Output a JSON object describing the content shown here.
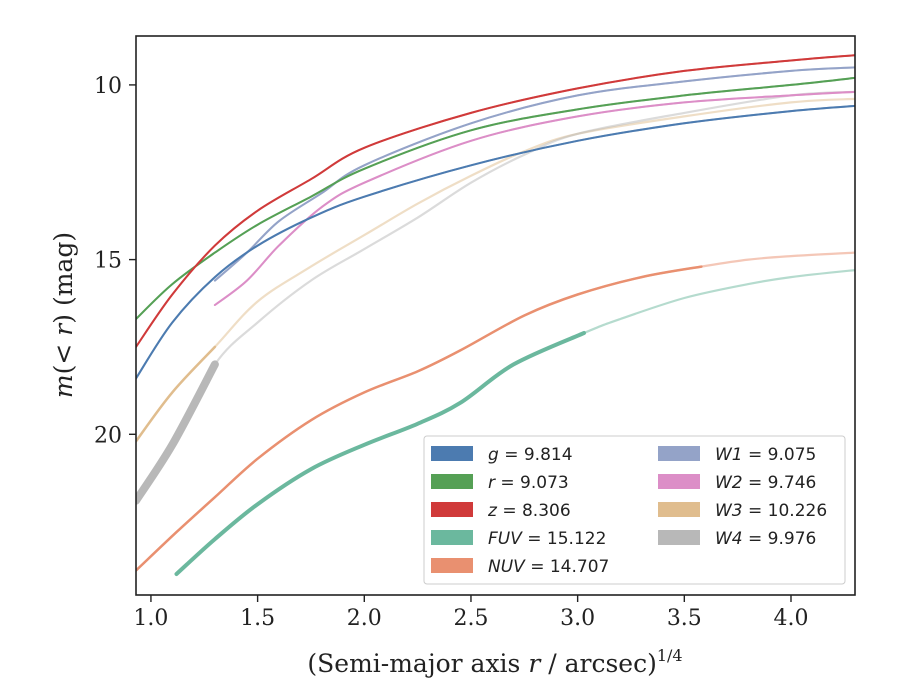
{
  "chart_data": {
    "type": "line",
    "xlabel": "(Semi-major axis r / arcsec)^1/4",
    "xlabel_parts": {
      "main": "(Semi-major axis ",
      "var": "r",
      "rest": " / arcsec)",
      "sup": "1/4"
    },
    "ylabel": "m(< r) (mag)",
    "ylabel_parts": {
      "var": "m",
      "open": "(",
      "lt": "< ",
      "r": "r",
      "close": ") (mag)"
    },
    "xlim": [
      0.93,
      4.3
    ],
    "ylim": [
      24.6,
      8.6
    ],
    "y_inverted": true,
    "xticks": [
      "1.0",
      "1.5",
      "2.0",
      "2.5",
      "3.0",
      "3.5",
      "4.0"
    ],
    "xtick_values": [
      1.0,
      1.5,
      2.0,
      2.5,
      3.0,
      3.5,
      4.0
    ],
    "yticks": [
      "10",
      "15",
      "20"
    ],
    "ytick_values": [
      10,
      15,
      20
    ],
    "legend_location": "lower right",
    "series": [
      {
        "name": "g = 9.814",
        "label_var": "g",
        "label_value": "9.814",
        "color": "#4c7bb0",
        "x": [
          0.93,
          1.1,
          1.3,
          1.5,
          1.75,
          2.0,
          2.5,
          3.0,
          3.5,
          4.0,
          4.3
        ],
        "y": [
          18.4,
          16.8,
          15.5,
          14.6,
          13.8,
          13.2,
          12.3,
          11.6,
          11.1,
          10.75,
          10.6
        ],
        "fade_after": 4.3,
        "width": 2
      },
      {
        "name": "r = 9.073",
        "label_var": "r",
        "label_value": "9.073",
        "color": "#55a055",
        "x": [
          0.93,
          1.1,
          1.3,
          1.5,
          1.75,
          2.0,
          2.5,
          3.0,
          3.5,
          4.0,
          4.3
        ],
        "y": [
          16.7,
          15.7,
          14.8,
          14.0,
          13.2,
          12.4,
          11.3,
          10.7,
          10.3,
          10.0,
          9.8
        ],
        "fade_after": 4.3,
        "width": 2
      },
      {
        "name": "z = 8.306",
        "label_var": "z",
        "label_value": "8.306",
        "color": "#d03a3a",
        "x": [
          0.93,
          1.1,
          1.3,
          1.5,
          1.75,
          2.0,
          2.5,
          3.0,
          3.5,
          4.0,
          4.3
        ],
        "y": [
          17.5,
          16.0,
          14.6,
          13.6,
          12.7,
          11.8,
          10.8,
          10.1,
          9.6,
          9.3,
          9.15
        ],
        "fade_after": 4.3,
        "width": 2
      },
      {
        "name": "FUV = 15.122",
        "label_var": "FUV",
        "label_value": "15.122",
        "color": "#6bb89e",
        "x": [
          1.12,
          1.3,
          1.5,
          1.75,
          2.0,
          2.25,
          2.45,
          2.7,
          3.03,
          3.2,
          3.5,
          3.8,
          4.0,
          4.3
        ],
        "y": [
          24.0,
          23.0,
          22.0,
          21.0,
          20.3,
          19.7,
          19.1,
          18.0,
          17.1,
          16.7,
          16.1,
          15.7,
          15.5,
          15.3
        ],
        "fade_after": 3.03,
        "width": 4
      },
      {
        "name": "NUV = 14.707",
        "label_var": "NUV",
        "label_value": "14.707",
        "color": "#e99070",
        "x": [
          0.93,
          1.12,
          1.3,
          1.5,
          1.75,
          2.0,
          2.25,
          2.45,
          2.75,
          3.0,
          3.3,
          3.58,
          3.8,
          4.0,
          4.3
        ],
        "y": [
          23.9,
          22.8,
          21.8,
          20.7,
          19.6,
          18.8,
          18.2,
          17.6,
          16.6,
          16.0,
          15.5,
          15.2,
          15.0,
          14.9,
          14.8
        ],
        "fade_after": 3.58,
        "width": 2.5
      },
      {
        "name": "W1 = 9.075",
        "label_var": "W1",
        "label_value": "9.075",
        "color": "#94a3c8",
        "x": [
          1.3,
          1.45,
          1.6,
          1.8,
          2.0,
          2.5,
          3.0,
          3.5,
          4.0,
          4.3
        ],
        "y": [
          15.6,
          14.8,
          13.9,
          13.1,
          12.3,
          11.1,
          10.3,
          9.9,
          9.6,
          9.5
        ],
        "fade_after": 4.3,
        "width": 2
      },
      {
        "name": "W2 = 9.746",
        "label_var": "W2",
        "label_value": "9.746",
        "color": "#dc8ec7",
        "x": [
          1.3,
          1.45,
          1.6,
          1.8,
          2.0,
          2.5,
          3.0,
          3.5,
          4.0,
          4.3
        ],
        "y": [
          16.3,
          15.6,
          14.6,
          13.5,
          12.8,
          11.6,
          10.9,
          10.5,
          10.3,
          10.2
        ],
        "fade_after": 4.3,
        "width": 2
      },
      {
        "name": "W3 = 10.226",
        "label_var": "W3",
        "label_value": "10.226",
        "color": "#e0bd8e",
        "x": [
          0.93,
          1.1,
          1.3,
          1.5,
          1.75,
          2.0,
          2.25,
          2.5,
          2.75,
          3.0,
          3.5,
          4.0,
          4.3
        ],
        "y": [
          20.2,
          18.8,
          17.5,
          16.2,
          15.2,
          14.3,
          13.4,
          12.6,
          11.9,
          11.4,
          10.9,
          10.5,
          10.4
        ],
        "fade_after": 1.3,
        "width": 2.5
      },
      {
        "name": "W4 = 9.976",
        "label_var": "W4",
        "label_value": "9.976",
        "color": "#b8b8b8",
        "x": [
          0.93,
          1.1,
          1.3,
          1.5,
          1.75,
          2.0,
          2.25,
          2.5,
          2.75,
          3.0,
          3.5,
          4.0,
          4.3
        ],
        "y": [
          21.9,
          20.3,
          18.0,
          16.8,
          15.6,
          14.7,
          13.8,
          12.8,
          12.0,
          11.4,
          10.8,
          10.3,
          10.2
        ],
        "fade_after": 1.3,
        "width": 8
      }
    ]
  }
}
